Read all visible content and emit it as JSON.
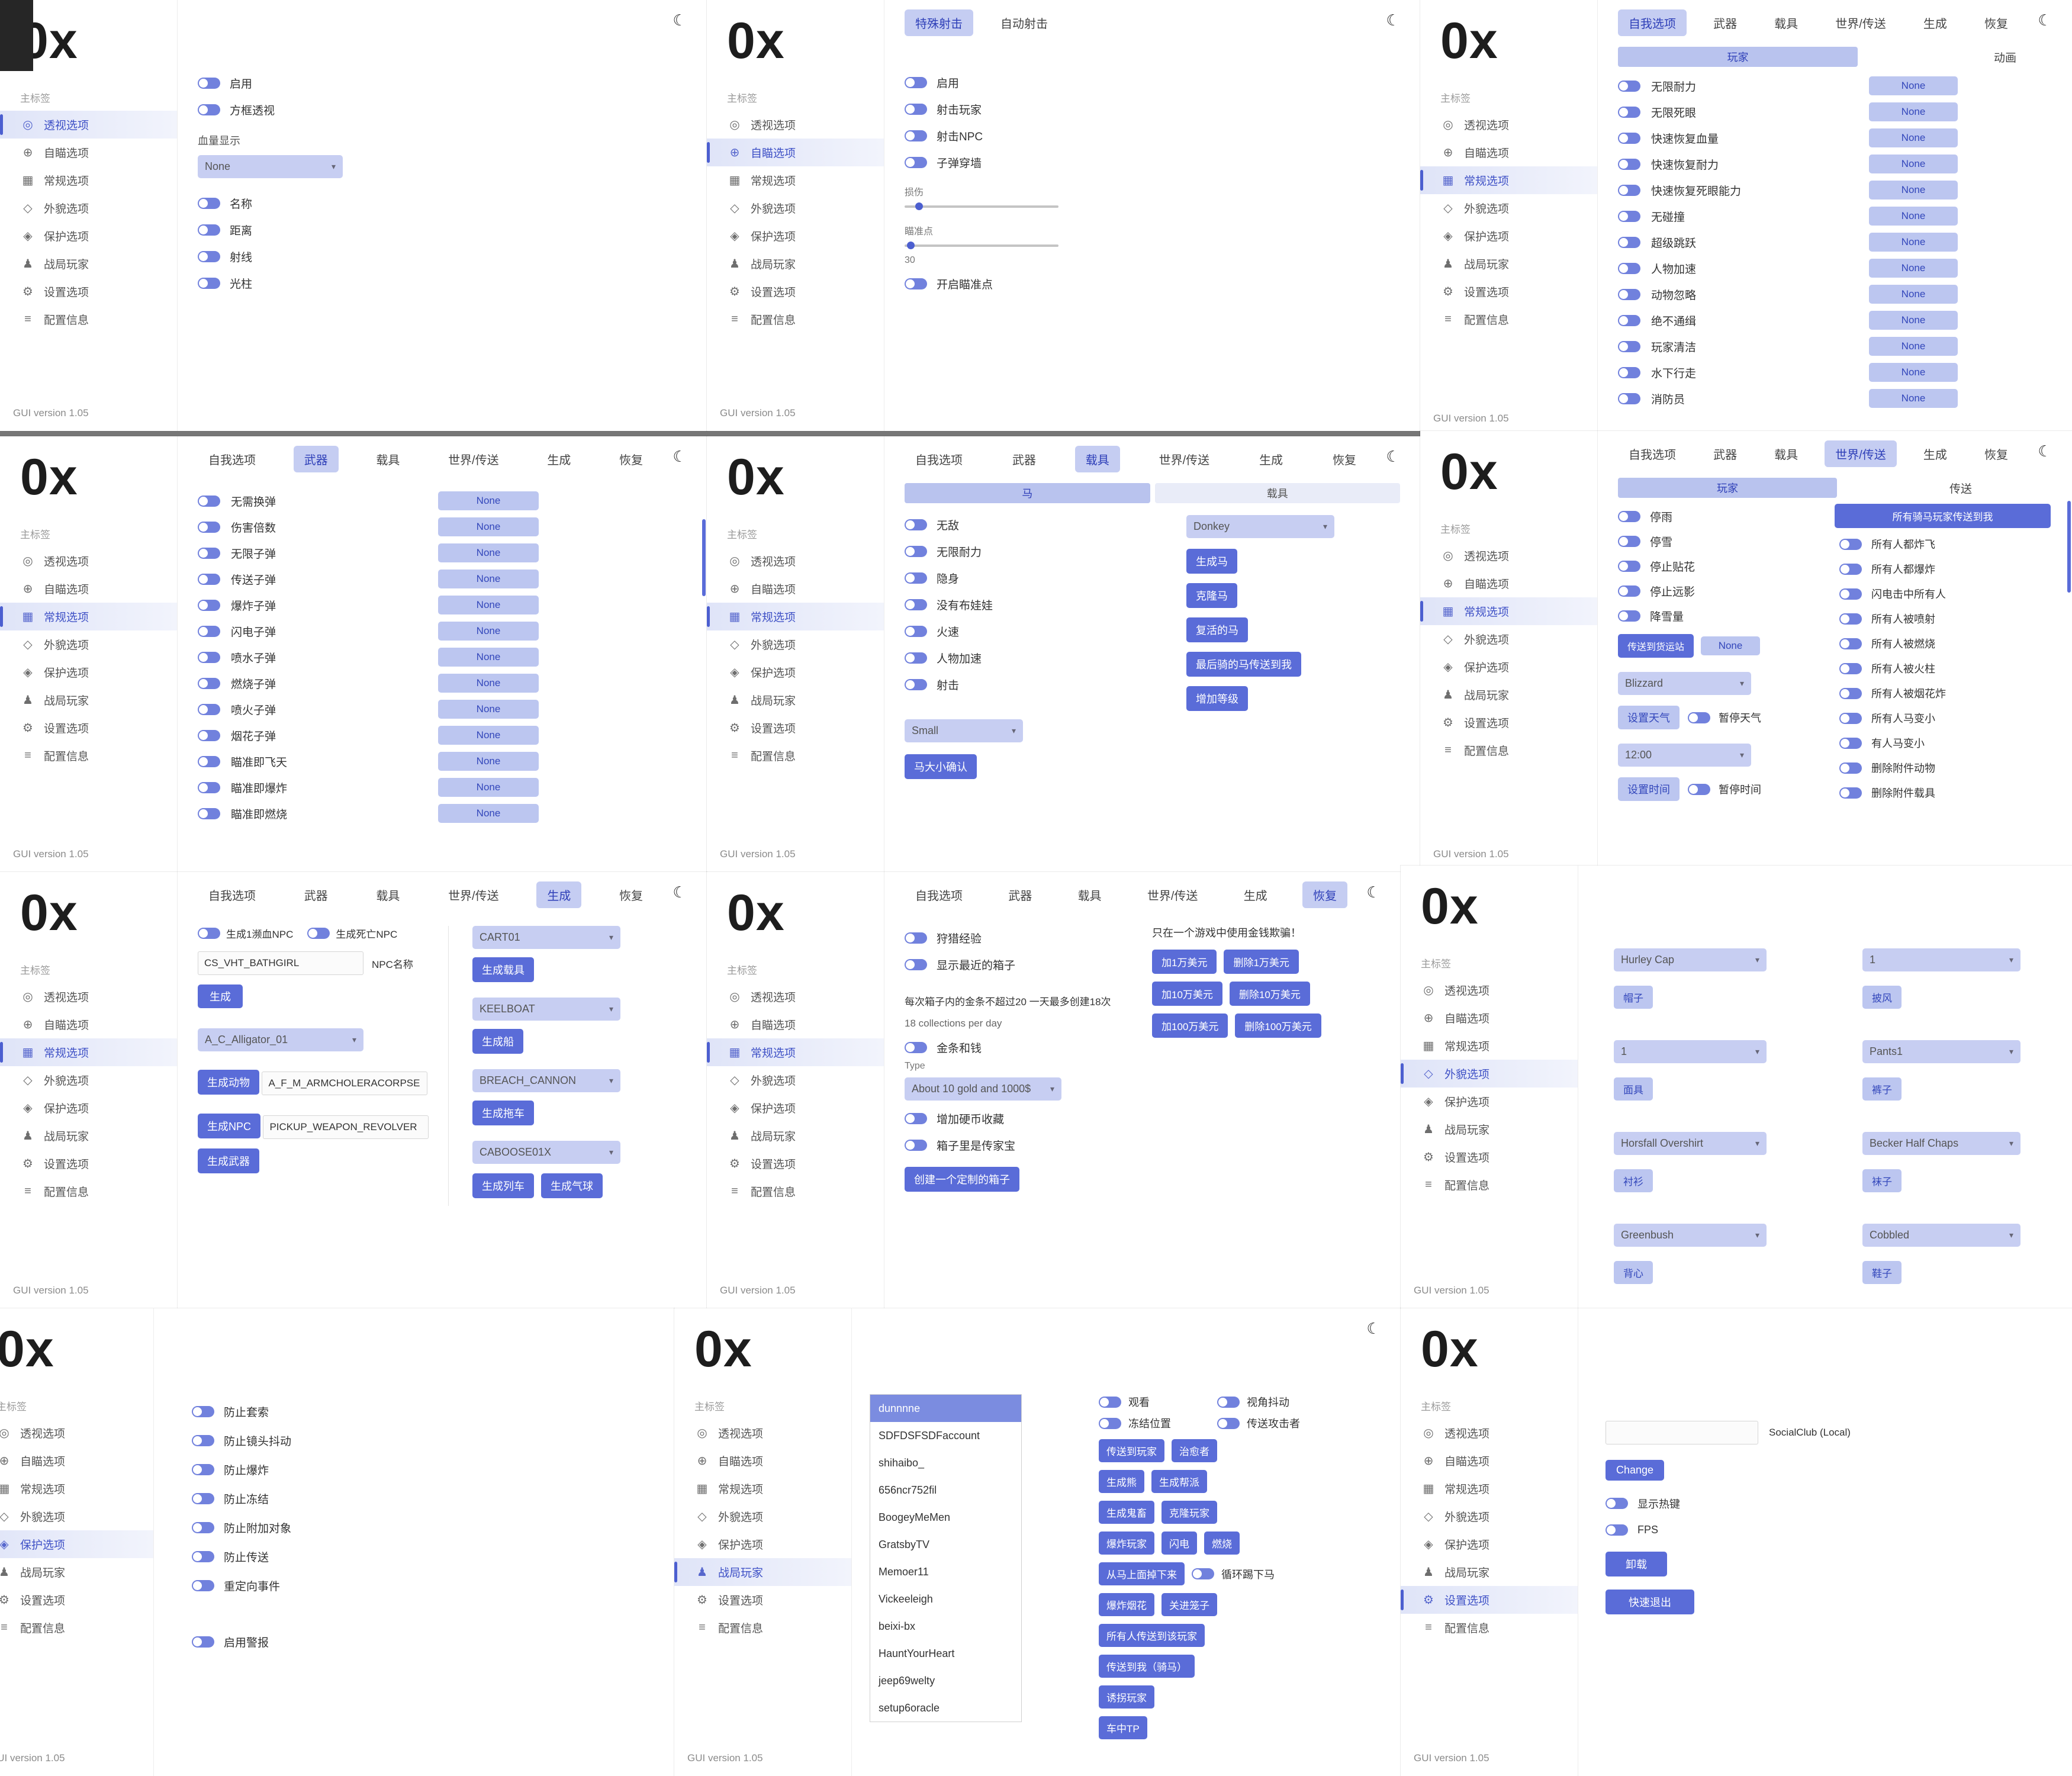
{
  "shared": {
    "logo": "0x",
    "sidebar_header": "主标签",
    "version": "GUI version 1.05",
    "none": "None",
    "moon_icon": "☾",
    "chevron_icon": "▾",
    "sidebar_items": [
      {
        "label": "透视选项",
        "icon": "◎"
      },
      {
        "label": "自瞄选项",
        "icon": "⊕"
      },
      {
        "label": "常规选项",
        "icon": "▦"
      },
      {
        "label": "外貌选项",
        "icon": "◇"
      },
      {
        "label": "保护选项",
        "icon": "◈"
      },
      {
        "label": "战局玩家",
        "icon": "♟"
      },
      {
        "label": "设置选项",
        "icon": "⚙"
      },
      {
        "label": "配置信息",
        "icon": "≡"
      }
    ],
    "tabs": [
      "自我选项",
      "武器",
      "载具",
      "世界/传送",
      "生成",
      "恢复"
    ]
  },
  "esp": {
    "enable": "启用",
    "box_esp": "方框透视",
    "health_label": "血量显示",
    "health_value": "None",
    "toggles": [
      "名称",
      "距离",
      "射线",
      "光柱"
    ]
  },
  "aim": {
    "tabs": [
      "特殊射击",
      "自动射击"
    ],
    "toggles": [
      "启用",
      "射击玩家",
      "射击NPC",
      "子弹穿墙"
    ],
    "damage_label": "损伤",
    "aimpoint_label": "瞄准点",
    "aimpoint_value": "30",
    "aimpoint_toggle": "开启瞄准点"
  },
  "selfopt": {
    "sub_active": "玩家",
    "sub_other": "动画",
    "rows": [
      "无限耐力",
      "无限死眼",
      "快速恢复血量",
      "快速恢复耐力",
      "快速恢复死眼能力",
      "无碰撞",
      "超级跳跃",
      "人物加速",
      "动物忽略",
      "绝不通缉",
      "玩家清洁",
      "水下行走",
      "消防员"
    ]
  },
  "weapons": {
    "rows": [
      "无需换弹",
      "伤害倍数",
      "无限子弹",
      "传送子弹",
      "爆炸子弹",
      "闪电子弹",
      "喷水子弹",
      "燃烧子弹",
      "喷火子弹",
      "烟花子弹",
      "瞄准即飞天",
      "瞄准即爆炸",
      "瞄准即燃烧"
    ]
  },
  "vehicle": {
    "sub_horse": "马",
    "sub_vehicle": "载具",
    "toggles": [
      "无敌",
      "无限耐力",
      "隐身",
      "没有布娃娃",
      "火速",
      "人物加速",
      "射击"
    ],
    "horse_value": "Donkey",
    "buttons": [
      "生成马",
      "克隆马",
      "复活的马",
      "最后骑的马传送到我",
      "增加等级"
    ],
    "size_value": "Small",
    "size_confirm": "马大小确认"
  },
  "world": {
    "sub_active": "玩家",
    "sub_other": "传送",
    "toggles": [
      "停雨",
      "停雪",
      "停止贴花",
      "停止远影",
      "降雪量"
    ],
    "station_button": "传送到货运站",
    "station_none": "None",
    "weather_value": "Blizzard",
    "weather_set": "设置天气",
    "weather_pause": "暂停天气",
    "time_value": "12:00",
    "time_set": "设置时间",
    "time_pause": "暂停时间",
    "ride_all_button": "所有骑马玩家传送到我",
    "right_toggles": [
      "所有人都炸飞",
      "所有人都爆炸",
      "闪电击中所有人",
      "所有人被喷射",
      "所有人被燃烧",
      "所有人被火柱",
      "所有人被烟花炸",
      "所有人马变小",
      "有人马变小",
      "删除附件动物",
      "删除附件载具"
    ]
  },
  "spawn": {
    "toggle_bleed": "生成1濒血NPC",
    "toggle_dead": "生成死亡NPC",
    "npc_value": "CS_VHT_BATHGIRL",
    "npc_label": "NPC名称",
    "spawn_button": "生成",
    "animal_value": "A_C_Alligator_01",
    "animal_button": "生成动物",
    "npc2_value": "A_F_M_ARMCHOLERACORPSE",
    "npc2_button": "生成NPC",
    "weapon_value": "PICKUP_WEAPON_REVOLVER",
    "weapon_button": "生成武器",
    "vehicles": [
      {
        "value": "CART01",
        "button": "生成载具"
      },
      {
        "value": "KEELBOAT",
        "button": "生成船"
      },
      {
        "value": "BREACH_CANNON",
        "button": "生成拖车"
      }
    ],
    "train_value": "CABOOSE01X",
    "train_buttons": [
      "生成列车",
      "生成气球"
    ]
  },
  "recovery": {
    "toggles": [
      "狩猎经验",
      "显示最近的箱子"
    ],
    "warning": "只在一个游戏中使用金钱欺骗！",
    "money_buttons": [
      [
        "加1万美元",
        "删除1万美元"
      ],
      [
        "加10万美元",
        "删除10万美元"
      ],
      [
        "加100万美元",
        "删除100万美元"
      ]
    ],
    "note1": "每次箱子内的金条不超过20 一天最多创建18次",
    "note2": "18 collections per day",
    "gold_toggle": "金条和钱",
    "type_label": "Type",
    "type_value": "About 10 gold and 1000$",
    "coin_toggle": "增加硬币收藏",
    "heirloom_toggle": "箱子里是传家宝",
    "create_button": "创建一个定制的箱子"
  },
  "outfit": {
    "left": [
      {
        "value": "Hurley Cap",
        "label": "帽子"
      },
      {
        "value": "1",
        "label": "面具"
      },
      {
        "value": "Horsfall Overshirt",
        "label": "衬衫"
      },
      {
        "value": "Greenbush",
        "label": "背心"
      }
    ],
    "right": [
      {
        "value": "1",
        "label": "披风"
      },
      {
        "value": "Pants1",
        "label": "裤子"
      },
      {
        "value": "Becker Half Chaps",
        "label": "袜子"
      },
      {
        "value": "Cobbled",
        "label": "鞋子"
      }
    ]
  },
  "protection": {
    "toggles": [
      "防止套索",
      "防止镜头抖动",
      "防止爆炸",
      "防止冻结",
      "防止附加对象",
      "防止传送",
      "重定向事件"
    ],
    "alarm_toggle": "启用警报"
  },
  "session": {
    "players": [
      "dunnnne",
      "SDFDSFSDFaccount",
      "shihaibo_",
      "656ncr752fil",
      "BoogeyMeMen",
      "GratsbyTV",
      "Memoer11",
      "Vickeeleigh",
      "beixi-bx",
      "HauntYourHeart",
      "jeep69welty",
      "setup6oracle"
    ],
    "toggle_pairs": [
      [
        "观看",
        "视角抖动"
      ],
      [
        "冻结位置",
        "传送攻击者"
      ]
    ],
    "rows_a": [
      [
        "传送到玩家",
        "治愈者"
      ],
      [
        "生成熊",
        "生成帮派"
      ],
      [
        "生成鬼畜",
        "克隆玩家"
      ],
      [
        "爆炸玩家",
        "闪电",
        "燃烧"
      ]
    ],
    "drop_button": "从马上面掉下来",
    "loop_label": "循环踢下马",
    "rows_b": [
      [
        "爆炸烟花",
        "关进笼子"
      ],
      [
        "所有人传送到该玩家"
      ],
      [
        "传送到我（骑马）"
      ],
      [
        "诱拐玩家"
      ],
      [
        "车中TP"
      ]
    ]
  },
  "settings": {
    "account_label": "SocialClub (Local)",
    "change_button": "Change",
    "hotkey_toggle": "显示热键",
    "fps_toggle": "FPS",
    "unload_button": "卸载",
    "quit_button": "快速退出"
  },
  "colors": {
    "accent": "#4c5fd0",
    "accent_light": "#c5cdf2",
    "solid_button": "#5a6cd8",
    "sidebar_active_bg": "#dfe4f8",
    "background": "#777777"
  }
}
